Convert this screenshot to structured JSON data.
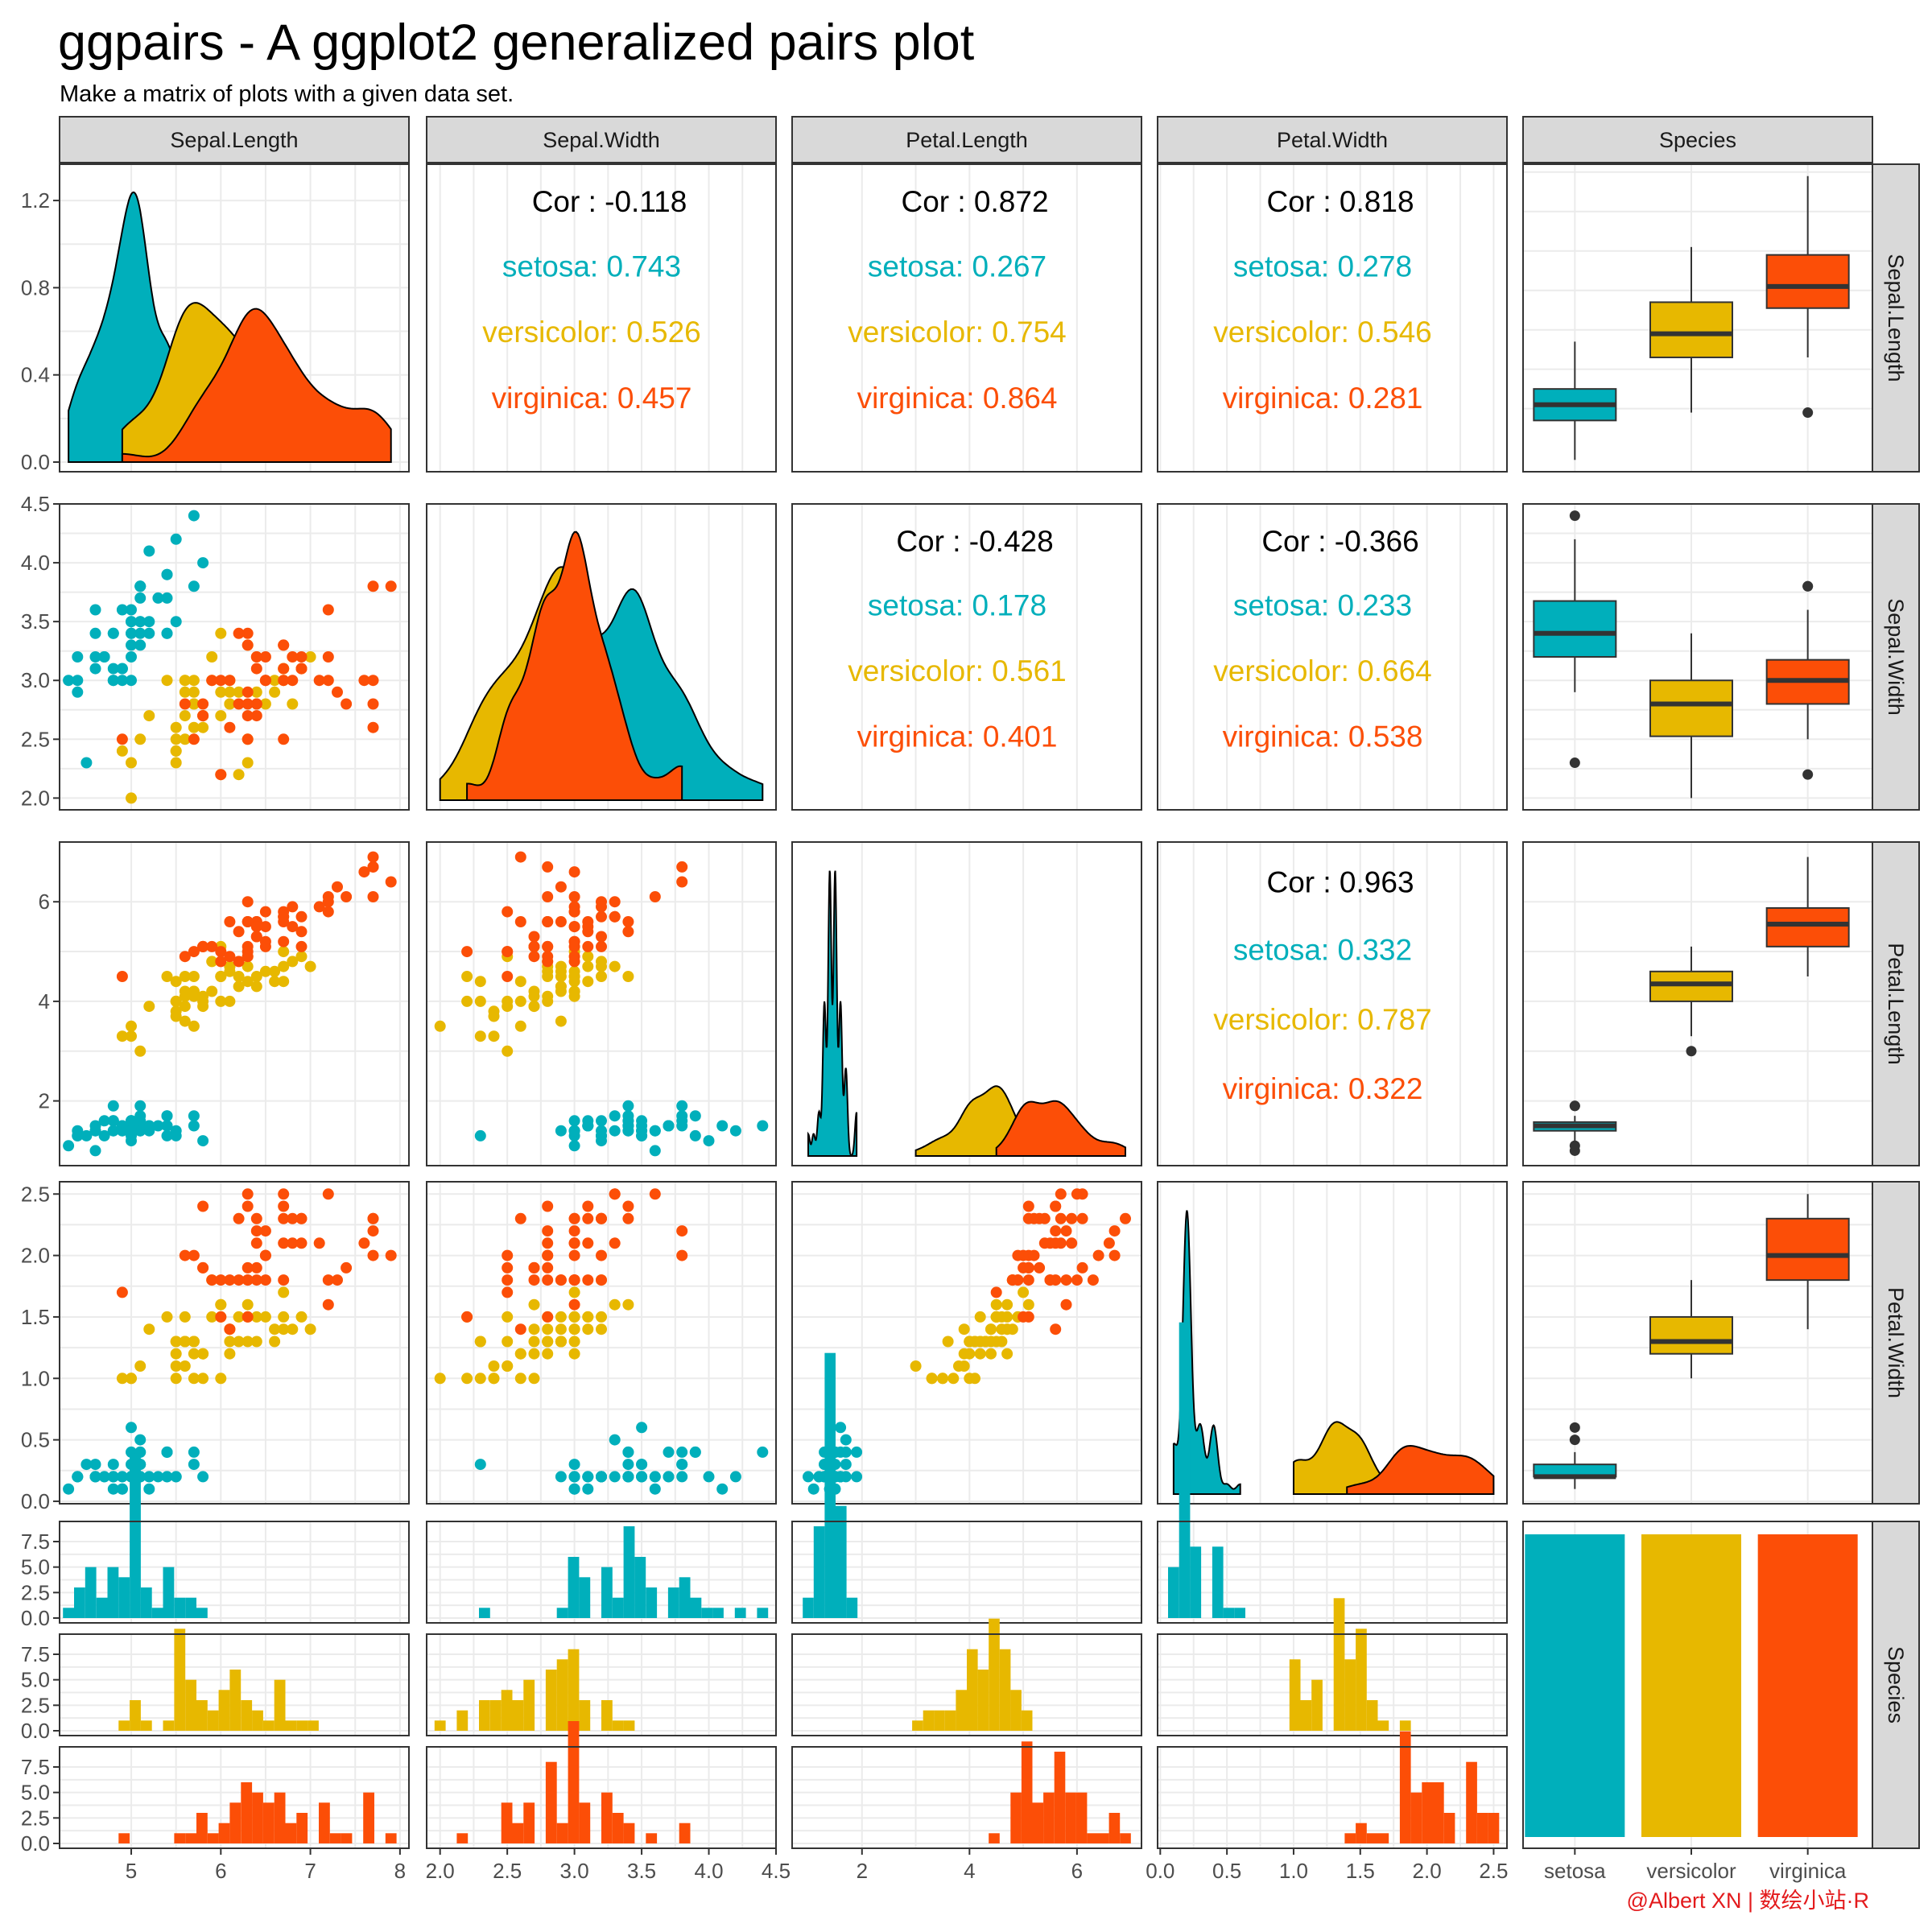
{
  "title": "ggpairs - A ggplot2 generalized pairs plot",
  "subtitle": "Make a matrix of plots with a given data set.",
  "credit": "@Albert XN | 数绘小站·R",
  "colors": {
    "setosa": "#00AFBB",
    "versicolor": "#E7B800",
    "virginica": "#FC4E07"
  },
  "variables": [
    "Sepal.Length",
    "Sepal.Width",
    "Petal.Length",
    "Petal.Width",
    "Species"
  ],
  "species": [
    "setosa",
    "versicolor",
    "virginica"
  ],
  "chart_data": {
    "type": "scatter",
    "description_grid": "5x5 pairs matrix",
    "axes": {
      "Sepal.Length": {
        "range": [
          4.2,
          8.1
        ],
        "ticks": [
          5,
          6,
          7,
          8
        ]
      },
      "Sepal.Width": {
        "range": [
          1.9,
          4.5
        ],
        "ticks": [
          2.0,
          2.5,
          3.0,
          3.5,
          4.0,
          4.5
        ]
      },
      "Petal.Length": {
        "range": [
          0.7,
          7.2
        ],
        "ticks": [
          2,
          4,
          6
        ]
      },
      "Petal.Width": {
        "range": [
          -0.02,
          2.6
        ],
        "ticks": [
          0.0,
          0.5,
          1.0,
          1.5,
          2.0,
          2.5
        ]
      }
    },
    "density_row_axis": {
      "range": [
        0,
        1.3
      ],
      "ticks": [
        0.0,
        0.4,
        0.8,
        1.2
      ]
    },
    "hist_axis": {
      "range": [
        0,
        9
      ],
      "ticks": [
        0.0,
        2.5,
        5.0,
        7.5
      ]
    },
    "species_bar_counts": [
      50,
      50,
      50
    ],
    "correlations": [
      {
        "pair": [
          "Sepal.Length",
          "Sepal.Width"
        ],
        "cor": "Cor : -0.118",
        "setosa": "setosa: 0.743",
        "versicolor": "versicolor: 0.526",
        "virginica": "virginica: 0.457"
      },
      {
        "pair": [
          "Sepal.Length",
          "Petal.Length"
        ],
        "cor": "Cor : 0.872",
        "setosa": "setosa: 0.267",
        "versicolor": "versicolor: 0.754",
        "virginica": "virginica: 0.864"
      },
      {
        "pair": [
          "Sepal.Length",
          "Petal.Width"
        ],
        "cor": "Cor : 0.818",
        "setosa": "setosa: 0.278",
        "versicolor": "versicolor: 0.546",
        "virginica": "virginica: 0.281"
      },
      {
        "pair": [
          "Sepal.Width",
          "Petal.Length"
        ],
        "cor": "Cor : -0.428",
        "setosa": "setosa: 0.178",
        "versicolor": "versicolor: 0.561",
        "virginica": "virginica: 0.401"
      },
      {
        "pair": [
          "Sepal.Width",
          "Petal.Width"
        ],
        "cor": "Cor : -0.366",
        "setosa": "setosa: 0.233",
        "versicolor": "versicolor: 0.664",
        "virginica": "virginica: 0.538"
      },
      {
        "pair": [
          "Petal.Length",
          "Petal.Width"
        ],
        "cor": "Cor : 0.963",
        "setosa": "setosa: 0.332",
        "versicolor": "versicolor: 0.787",
        "virginica": "virginica: 0.322"
      }
    ],
    "iris": [
      [
        5.1,
        3.5,
        1.4,
        0.2,
        0
      ],
      [
        4.9,
        3.0,
        1.4,
        0.2,
        0
      ],
      [
        4.7,
        3.2,
        1.3,
        0.2,
        0
      ],
      [
        4.6,
        3.1,
        1.5,
        0.2,
        0
      ],
      [
        5.0,
        3.6,
        1.4,
        0.2,
        0
      ],
      [
        5.4,
        3.9,
        1.7,
        0.4,
        0
      ],
      [
        4.6,
        3.4,
        1.4,
        0.3,
        0
      ],
      [
        5.0,
        3.4,
        1.5,
        0.2,
        0
      ],
      [
        4.4,
        2.9,
        1.4,
        0.2,
        0
      ],
      [
        4.9,
        3.1,
        1.5,
        0.1,
        0
      ],
      [
        5.4,
        3.7,
        1.5,
        0.2,
        0
      ],
      [
        4.8,
        3.4,
        1.6,
        0.2,
        0
      ],
      [
        4.8,
        3.0,
        1.4,
        0.1,
        0
      ],
      [
        4.3,
        3.0,
        1.1,
        0.1,
        0
      ],
      [
        5.8,
        4.0,
        1.2,
        0.2,
        0
      ],
      [
        5.7,
        4.4,
        1.5,
        0.4,
        0
      ],
      [
        5.4,
        3.9,
        1.3,
        0.4,
        0
      ],
      [
        5.1,
        3.5,
        1.4,
        0.3,
        0
      ],
      [
        5.7,
        3.8,
        1.7,
        0.3,
        0
      ],
      [
        5.1,
        3.8,
        1.5,
        0.3,
        0
      ],
      [
        5.4,
        3.4,
        1.7,
        0.2,
        0
      ],
      [
        5.1,
        3.7,
        1.5,
        0.4,
        0
      ],
      [
        4.6,
        3.6,
        1.0,
        0.2,
        0
      ],
      [
        5.1,
        3.3,
        1.7,
        0.5,
        0
      ],
      [
        4.8,
        3.4,
        1.9,
        0.2,
        0
      ],
      [
        5.0,
        3.0,
        1.6,
        0.2,
        0
      ],
      [
        5.0,
        3.4,
        1.6,
        0.4,
        0
      ],
      [
        5.2,
        3.5,
        1.5,
        0.2,
        0
      ],
      [
        5.2,
        3.4,
        1.4,
        0.2,
        0
      ],
      [
        4.7,
        3.2,
        1.6,
        0.2,
        0
      ],
      [
        4.8,
        3.1,
        1.6,
        0.2,
        0
      ],
      [
        5.4,
        3.4,
        1.5,
        0.4,
        0
      ],
      [
        5.2,
        4.1,
        1.5,
        0.1,
        0
      ],
      [
        5.5,
        4.2,
        1.4,
        0.2,
        0
      ],
      [
        4.9,
        3.1,
        1.5,
        0.2,
        0
      ],
      [
        5.0,
        3.2,
        1.2,
        0.2,
        0
      ],
      [
        5.5,
        3.5,
        1.3,
        0.2,
        0
      ],
      [
        4.9,
        3.6,
        1.4,
        0.1,
        0
      ],
      [
        4.4,
        3.0,
        1.3,
        0.2,
        0
      ],
      [
        5.1,
        3.4,
        1.5,
        0.2,
        0
      ],
      [
        5.0,
        3.5,
        1.3,
        0.3,
        0
      ],
      [
        4.5,
        2.3,
        1.3,
        0.3,
        0
      ],
      [
        4.4,
        3.2,
        1.3,
        0.2,
        0
      ],
      [
        5.0,
        3.5,
        1.6,
        0.6,
        0
      ],
      [
        5.1,
        3.8,
        1.9,
        0.4,
        0
      ],
      [
        4.8,
        3.0,
        1.4,
        0.3,
        0
      ],
      [
        5.1,
        3.8,
        1.6,
        0.2,
        0
      ],
      [
        4.6,
        3.2,
        1.4,
        0.2,
        0
      ],
      [
        5.3,
        3.7,
        1.5,
        0.2,
        0
      ],
      [
        5.0,
        3.3,
        1.4,
        0.2,
        0
      ],
      [
        7.0,
        3.2,
        4.7,
        1.4,
        1
      ],
      [
        6.4,
        3.2,
        4.5,
        1.5,
        1
      ],
      [
        6.9,
        3.1,
        4.9,
        1.5,
        1
      ],
      [
        5.5,
        2.3,
        4.0,
        1.3,
        1
      ],
      [
        6.5,
        2.8,
        4.6,
        1.5,
        1
      ],
      [
        5.7,
        2.8,
        4.5,
        1.3,
        1
      ],
      [
        6.3,
        3.3,
        4.7,
        1.6,
        1
      ],
      [
        4.9,
        2.4,
        3.3,
        1.0,
        1
      ],
      [
        6.6,
        2.9,
        4.6,
        1.3,
        1
      ],
      [
        5.2,
        2.7,
        3.9,
        1.4,
        1
      ],
      [
        5.0,
        2.0,
        3.5,
        1.0,
        1
      ],
      [
        5.9,
        3.0,
        4.2,
        1.5,
        1
      ],
      [
        6.0,
        2.2,
        4.0,
        1.0,
        1
      ],
      [
        6.1,
        2.9,
        4.7,
        1.4,
        1
      ],
      [
        5.6,
        2.9,
        3.6,
        1.3,
        1
      ],
      [
        6.7,
        3.1,
        4.4,
        1.4,
        1
      ],
      [
        5.6,
        3.0,
        4.5,
        1.5,
        1
      ],
      [
        5.8,
        2.7,
        4.1,
        1.0,
        1
      ],
      [
        6.2,
        2.2,
        4.5,
        1.5,
        1
      ],
      [
        5.6,
        2.5,
        3.9,
        1.1,
        1
      ],
      [
        5.9,
        3.2,
        4.8,
        1.8,
        1
      ],
      [
        6.1,
        2.8,
        4.0,
        1.3,
        1
      ],
      [
        6.3,
        2.5,
        4.9,
        1.5,
        1
      ],
      [
        6.1,
        2.8,
        4.7,
        1.2,
        1
      ],
      [
        6.4,
        2.9,
        4.3,
        1.3,
        1
      ],
      [
        6.6,
        3.0,
        4.4,
        1.4,
        1
      ],
      [
        6.8,
        2.8,
        4.8,
        1.4,
        1
      ],
      [
        6.7,
        3.0,
        5.0,
        1.7,
        1
      ],
      [
        6.0,
        2.9,
        4.5,
        1.5,
        1
      ],
      [
        5.7,
        2.6,
        3.5,
        1.0,
        1
      ],
      [
        5.5,
        2.4,
        3.8,
        1.1,
        1
      ],
      [
        5.5,
        2.4,
        3.7,
        1.0,
        1
      ],
      [
        5.8,
        2.7,
        3.9,
        1.2,
        1
      ],
      [
        6.0,
        2.7,
        5.1,
        1.6,
        1
      ],
      [
        5.4,
        3.0,
        4.5,
        1.5,
        1
      ],
      [
        6.0,
        3.4,
        4.5,
        1.6,
        1
      ],
      [
        6.7,
        3.1,
        4.7,
        1.5,
        1
      ],
      [
        6.3,
        2.3,
        4.4,
        1.3,
        1
      ],
      [
        5.6,
        3.0,
        4.1,
        1.3,
        1
      ],
      [
        5.5,
        2.5,
        4.0,
        1.3,
        1
      ],
      [
        5.5,
        2.6,
        4.4,
        1.2,
        1
      ],
      [
        6.1,
        3.0,
        4.6,
        1.4,
        1
      ],
      [
        5.8,
        2.6,
        4.0,
        1.2,
        1
      ],
      [
        5.0,
        2.3,
        3.3,
        1.0,
        1
      ],
      [
        5.6,
        2.7,
        4.2,
        1.3,
        1
      ],
      [
        5.7,
        3.0,
        4.2,
        1.2,
        1
      ],
      [
        5.7,
        2.9,
        4.2,
        1.3,
        1
      ],
      [
        6.2,
        2.9,
        4.3,
        1.3,
        1
      ],
      [
        5.1,
        2.5,
        3.0,
        1.1,
        1
      ],
      [
        5.7,
        2.8,
        4.1,
        1.3,
        1
      ],
      [
        6.3,
        3.3,
        6.0,
        2.5,
        2
      ],
      [
        5.8,
        2.7,
        5.1,
        1.9,
        2
      ],
      [
        7.1,
        3.0,
        5.9,
        2.1,
        2
      ],
      [
        6.3,
        2.9,
        5.6,
        1.8,
        2
      ],
      [
        6.5,
        3.0,
        5.8,
        2.2,
        2
      ],
      [
        7.6,
        3.0,
        6.6,
        2.1,
        2
      ],
      [
        4.9,
        2.5,
        4.5,
        1.7,
        2
      ],
      [
        7.3,
        2.9,
        6.3,
        1.8,
        2
      ],
      [
        6.7,
        2.5,
        5.8,
        1.8,
        2
      ],
      [
        7.2,
        3.6,
        6.1,
        2.5,
        2
      ],
      [
        6.5,
        3.2,
        5.1,
        2.0,
        2
      ],
      [
        6.4,
        2.7,
        5.3,
        1.9,
        2
      ],
      [
        6.8,
        3.0,
        5.5,
        2.1,
        2
      ],
      [
        5.7,
        2.5,
        5.0,
        2.0,
        2
      ],
      [
        5.8,
        2.8,
        5.1,
        2.4,
        2
      ],
      [
        6.4,
        3.2,
        5.3,
        2.3,
        2
      ],
      [
        6.5,
        3.0,
        5.5,
        1.8,
        2
      ],
      [
        7.7,
        3.8,
        6.7,
        2.2,
        2
      ],
      [
        7.7,
        2.6,
        6.9,
        2.3,
        2
      ],
      [
        6.0,
        2.2,
        5.0,
        1.5,
        2
      ],
      [
        6.9,
        3.2,
        5.7,
        2.3,
        2
      ],
      [
        5.6,
        2.8,
        4.9,
        2.0,
        2
      ],
      [
        7.7,
        2.8,
        6.7,
        2.0,
        2
      ],
      [
        6.3,
        2.7,
        4.9,
        1.8,
        2
      ],
      [
        6.7,
        3.3,
        5.7,
        2.1,
        2
      ],
      [
        7.2,
        3.2,
        6.0,
        1.8,
        2
      ],
      [
        6.2,
        2.8,
        4.8,
        1.8,
        2
      ],
      [
        6.1,
        3.0,
        4.9,
        1.8,
        2
      ],
      [
        6.4,
        2.8,
        5.6,
        2.1,
        2
      ],
      [
        7.2,
        3.0,
        5.8,
        1.6,
        2
      ],
      [
        7.4,
        2.8,
        6.1,
        1.9,
        2
      ],
      [
        7.9,
        3.8,
        6.4,
        2.0,
        2
      ],
      [
        6.4,
        2.8,
        5.6,
        2.2,
        2
      ],
      [
        6.3,
        2.8,
        5.1,
        1.5,
        2
      ],
      [
        6.1,
        2.6,
        5.6,
        1.4,
        2
      ],
      [
        7.7,
        3.0,
        6.1,
        2.3,
        2
      ],
      [
        6.3,
        3.4,
        5.6,
        2.4,
        2
      ],
      [
        6.4,
        3.1,
        5.5,
        1.8,
        2
      ],
      [
        6.0,
        3.0,
        4.8,
        1.8,
        2
      ],
      [
        6.9,
        3.1,
        5.4,
        2.1,
        2
      ],
      [
        6.7,
        3.1,
        5.6,
        2.4,
        2
      ],
      [
        6.9,
        3.1,
        5.1,
        2.3,
        2
      ],
      [
        5.8,
        2.7,
        5.1,
        1.9,
        2
      ],
      [
        6.8,
        3.2,
        5.9,
        2.3,
        2
      ],
      [
        6.7,
        3.3,
        5.7,
        2.5,
        2
      ],
      [
        6.7,
        3.0,
        5.2,
        2.3,
        2
      ],
      [
        6.3,
        2.5,
        5.0,
        1.9,
        2
      ],
      [
        6.5,
        3.0,
        5.2,
        2.0,
        2
      ],
      [
        6.2,
        3.4,
        5.4,
        2.3,
        2
      ],
      [
        5.9,
        3.0,
        5.1,
        1.8,
        2
      ]
    ]
  }
}
